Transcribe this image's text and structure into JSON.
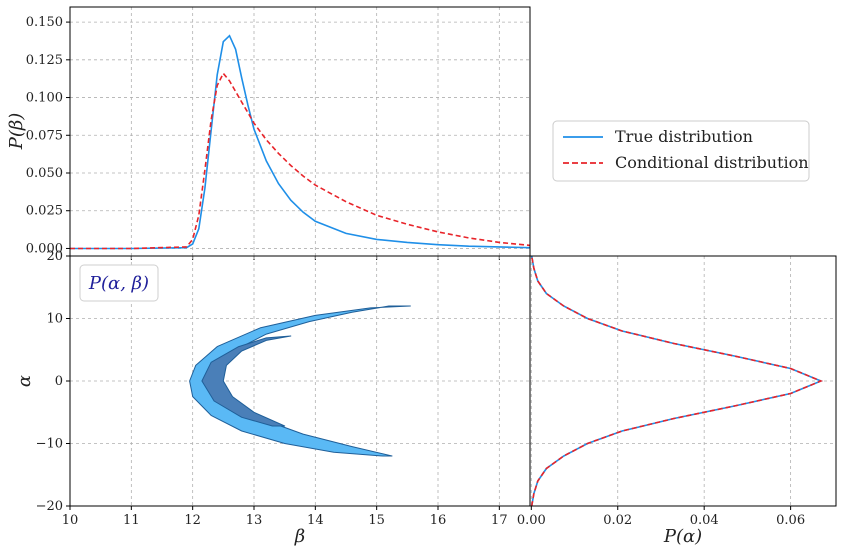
{
  "chart_data": [
    {
      "type": "line",
      "panel": "marginal-beta",
      "ylabel": "P(β)",
      "xlim": [
        10,
        17.5
      ],
      "ylim": [
        -0.005,
        0.16
      ],
      "x_ticks": [
        10,
        11,
        12,
        13,
        14,
        15,
        16,
        17
      ],
      "y_ticks": [
        "0.000",
        "0.025",
        "0.050",
        "0.075",
        "0.100",
        "0.125",
        "0.150"
      ],
      "grid": true,
      "series": [
        {
          "name": "True distribution",
          "color": "#1f8fe8",
          "style": "solid",
          "x": [
            10,
            11,
            11.9,
            12.0,
            12.1,
            12.2,
            12.3,
            12.4,
            12.5,
            12.6,
            12.7,
            12.8,
            12.9,
            13.0,
            13.2,
            13.4,
            13.6,
            13.8,
            14.0,
            14.5,
            15.0,
            15.5,
            16.0,
            16.5,
            17.0,
            17.5
          ],
          "y": [
            0,
            0,
            0.0005,
            0.003,
            0.013,
            0.04,
            0.078,
            0.115,
            0.137,
            0.141,
            0.132,
            0.113,
            0.095,
            0.079,
            0.058,
            0.043,
            0.032,
            0.024,
            0.018,
            0.01,
            0.006,
            0.004,
            0.0025,
            0.0015,
            0.001,
            0.0005
          ]
        },
        {
          "name": "Conditional distribution",
          "color": "#e8242a",
          "style": "dashed",
          "x": [
            10,
            11,
            11.9,
            12.0,
            12.1,
            12.2,
            12.3,
            12.4,
            12.5,
            12.6,
            12.7,
            12.8,
            12.9,
            13.0,
            13.2,
            13.4,
            13.6,
            13.8,
            14.0,
            14.5,
            15.0,
            15.5,
            16.0,
            16.5,
            17.0,
            17.5
          ],
          "y": [
            0,
            0,
            0.001,
            0.006,
            0.022,
            0.052,
            0.085,
            0.108,
            0.116,
            0.111,
            0.104,
            0.097,
            0.09,
            0.083,
            0.072,
            0.063,
            0.055,
            0.048,
            0.042,
            0.031,
            0.022,
            0.016,
            0.011,
            0.007,
            0.004,
            0.002
          ]
        }
      ]
    },
    {
      "type": "contour",
      "panel": "joint",
      "xlabel": "β",
      "ylabel": "α",
      "xlim": [
        10,
        17.5
      ],
      "ylim": [
        -20,
        20
      ],
      "x_ticks": [
        10,
        11,
        12,
        13,
        14,
        15,
        16,
        17
      ],
      "y_ticks": [
        -20,
        -10,
        0,
        10,
        20
      ],
      "grid": true,
      "inset_label": "P(α, β)",
      "regions": [
        {
          "level": "outer",
          "color": "#5ab9f5",
          "outline": [
            [
              15.55,
              12
            ],
            [
              15.2,
              12
            ],
            [
              14.6,
              11
            ],
            [
              13.9,
              9.5
            ],
            [
              13.2,
              7.5
            ],
            [
              12.7,
              5
            ],
            [
              12.38,
              2.5
            ],
            [
              12.4,
              0
            ],
            [
              12.6,
              -3
            ],
            [
              13.1,
              -6
            ],
            [
              13.8,
              -8.5
            ],
            [
              14.6,
              -10.5
            ],
            [
              15.25,
              -12
            ],
            [
              15.1,
              -12
            ],
            [
              14.3,
              -11.4
            ],
            [
              13.5,
              -10
            ],
            [
              12.8,
              -8
            ],
            [
              12.3,
              -5.5
            ],
            [
              12.0,
              -2.5
            ],
            [
              11.95,
              0
            ],
            [
              12.05,
              2.5
            ],
            [
              12.4,
              5.5
            ],
            [
              13.1,
              8.5
            ],
            [
              14.0,
              10.5
            ],
            [
              14.9,
              11.7
            ]
          ]
        },
        {
          "level": "inner",
          "color": "#4a7fb8",
          "outline": [
            [
              13.6,
              7.2
            ],
            [
              13.2,
              6.5
            ],
            [
              12.8,
              4.8
            ],
            [
              12.55,
              2.5
            ],
            [
              12.5,
              0
            ],
            [
              12.65,
              -2.5
            ],
            [
              13.0,
              -5
            ],
            [
              13.5,
              -7.2
            ],
            [
              13.3,
              -7.2
            ],
            [
              12.8,
              -5.8
            ],
            [
              12.35,
              -3.2
            ],
            [
              12.15,
              0
            ],
            [
              12.3,
              3
            ],
            [
              12.75,
              5.5
            ],
            [
              13.2,
              6.9
            ]
          ]
        }
      ]
    },
    {
      "type": "line",
      "panel": "marginal-alpha",
      "xlabel": "P(α)",
      "xlim": [
        -0.0003,
        0.0705
      ],
      "ylim": [
        -20,
        20
      ],
      "x_ticks": [
        "0.00",
        "0.02",
        "0.04",
        "0.06"
      ],
      "grid": true,
      "series": [
        {
          "name": "True distribution",
          "color": "#1f8fe8",
          "style": "solid",
          "alpha": [
            -20,
            -18,
            -16,
            -14,
            -12,
            -10,
            -8,
            -6,
            -4,
            -2,
            0,
            2,
            4,
            6,
            8,
            10,
            12,
            14,
            16,
            18,
            20
          ],
          "density": [
            0.0001,
            0.0006,
            0.0015,
            0.0035,
            0.0075,
            0.013,
            0.021,
            0.033,
            0.047,
            0.06,
            0.067,
            0.06,
            0.047,
            0.033,
            0.021,
            0.013,
            0.0075,
            0.0035,
            0.0015,
            0.0006,
            0.0001
          ]
        },
        {
          "name": "Conditional distribution",
          "color": "#e8242a",
          "style": "dashed",
          "alpha": [
            -20,
            -18,
            -16,
            -14,
            -12,
            -10,
            -8,
            -6,
            -4,
            -2,
            0,
            2,
            4,
            6,
            8,
            10,
            12,
            14,
            16,
            18,
            20
          ],
          "density": [
            0.0001,
            0.0006,
            0.0015,
            0.0035,
            0.0075,
            0.013,
            0.021,
            0.033,
            0.047,
            0.06,
            0.067,
            0.06,
            0.047,
            0.033,
            0.021,
            0.013,
            0.0075,
            0.0035,
            0.0015,
            0.0006,
            0.0001
          ]
        }
      ]
    }
  ],
  "legend": {
    "placement": "top-right",
    "entries": [
      {
        "label": "True distribution",
        "color": "#1f8fe8",
        "style": "solid"
      },
      {
        "label": "Conditional distribution",
        "color": "#e8242a",
        "style": "dashed"
      }
    ]
  }
}
